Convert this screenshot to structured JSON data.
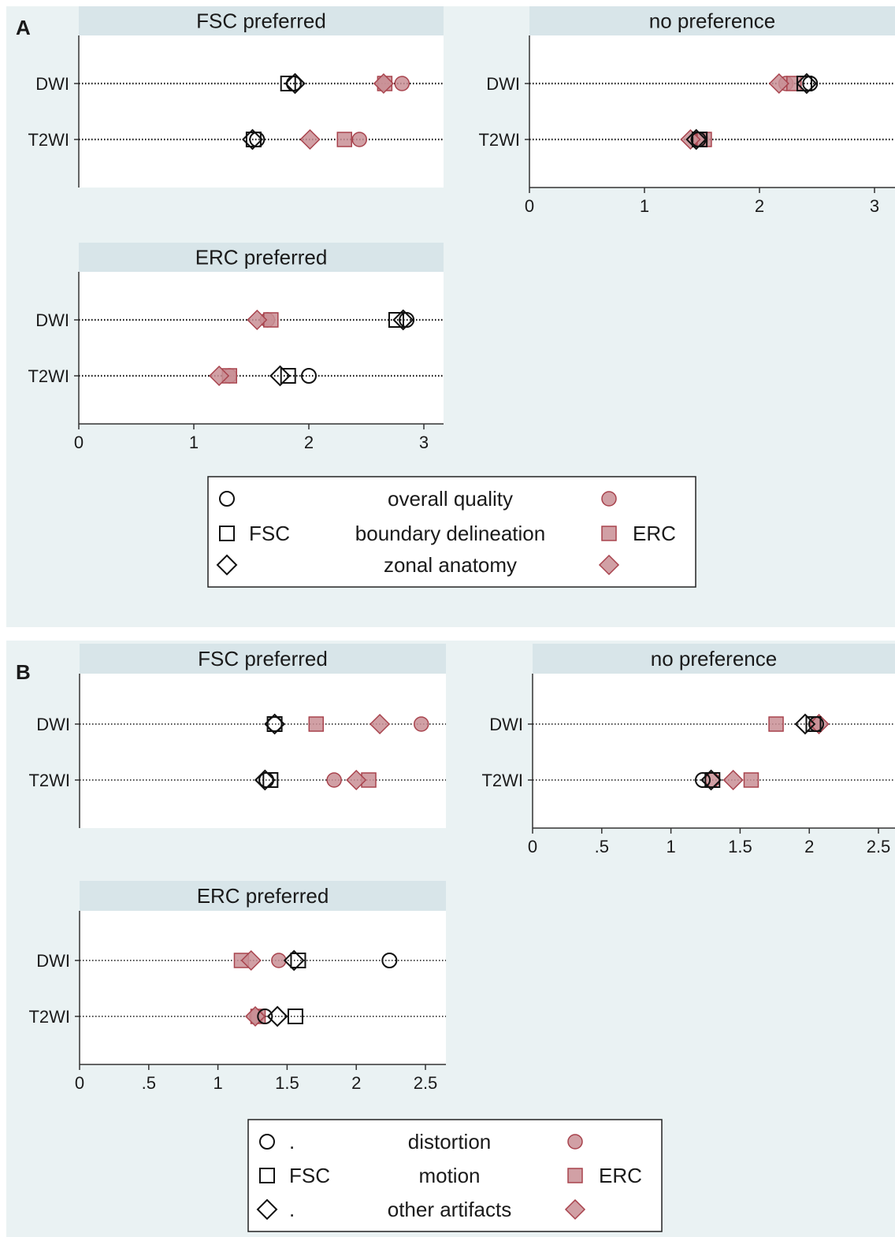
{
  "colors": {
    "background": "#eaf2f3",
    "strip": "#d8e5e9",
    "plot": "#ffffff",
    "open": "#111111",
    "filled": "#a8434d",
    "filled_fill": "#c98f95"
  },
  "figures": [
    {
      "label": "A",
      "legend": {
        "rows": [
          {
            "left_text": "",
            "center_text": "overall quality",
            "right_text": "",
            "shape": "circle"
          },
          {
            "left_text": "FSC",
            "center_text": "boundary delineation",
            "right_text": "ERC",
            "shape": "square"
          },
          {
            "left_text": "",
            "center_text": "zonal anatomy",
            "right_text": "",
            "shape": "diamond"
          }
        ]
      }
    },
    {
      "label": "B",
      "legend": {
        "rows": [
          {
            "left_text": ".",
            "center_text": "distortion",
            "right_text": "",
            "shape": "circle"
          },
          {
            "left_text": "FSC",
            "center_text": "motion",
            "right_text": "ERC",
            "shape": "square"
          },
          {
            "left_text": ".",
            "center_text": "other artifacts",
            "right_text": "",
            "shape": "diamond"
          }
        ]
      }
    }
  ],
  "chart_data": [
    {
      "type": "scatter",
      "figure": "A",
      "panel_title": "FSC preferred",
      "categories": [
        "DWI",
        "T2WI"
      ],
      "xlim": [
        0,
        3.2
      ],
      "series": [
        {
          "name": "overall quality",
          "group": "FSC",
          "shape": "circle",
          "filled": false,
          "values": [
            1.87,
            1.55
          ]
        },
        {
          "name": "boundary delineation",
          "group": "FSC",
          "shape": "square",
          "filled": false,
          "values": [
            1.82,
            1.52
          ]
        },
        {
          "name": "zonal anatomy",
          "group": "FSC",
          "shape": "diamond",
          "filled": false,
          "values": [
            1.88,
            1.51
          ]
        },
        {
          "name": "overall quality",
          "group": "ERC",
          "shape": "circle",
          "filled": true,
          "values": [
            2.81,
            2.44
          ]
        },
        {
          "name": "boundary delineation",
          "group": "ERC",
          "shape": "square",
          "filled": true,
          "values": [
            2.66,
            2.31
          ]
        },
        {
          "name": "zonal anatomy",
          "group": "ERC",
          "shape": "diamond",
          "filled": true,
          "values": [
            2.65,
            2.01
          ]
        }
      ]
    },
    {
      "type": "scatter",
      "figure": "A",
      "panel_title": "no preference",
      "categories": [
        "DWI",
        "T2WI"
      ],
      "xlim": [
        0,
        3.2
      ],
      "xticks": [
        "0",
        "1",
        "2",
        "3"
      ],
      "series": [
        {
          "name": "overall quality",
          "group": "FSC",
          "shape": "circle",
          "filled": false,
          "values": [
            2.44,
            1.47
          ]
        },
        {
          "name": "boundary delineation",
          "group": "FSC",
          "shape": "square",
          "filled": false,
          "values": [
            2.39,
            1.48
          ]
        },
        {
          "name": "zonal anatomy",
          "group": "FSC",
          "shape": "diamond",
          "filled": false,
          "values": [
            2.41,
            1.45
          ]
        },
        {
          "name": "overall quality",
          "group": "ERC",
          "shape": "circle",
          "filled": true,
          "values": [
            2.23,
            1.49
          ]
        },
        {
          "name": "boundary delineation",
          "group": "ERC",
          "shape": "square",
          "filled": true,
          "values": [
            2.3,
            1.52
          ]
        },
        {
          "name": "zonal anatomy",
          "group": "ERC",
          "shape": "diamond",
          "filled": true,
          "values": [
            2.17,
            1.4
          ]
        }
      ]
    },
    {
      "type": "scatter",
      "figure": "A",
      "panel_title": "ERC preferred",
      "categories": [
        "DWI",
        "T2WI"
      ],
      "xlim": [
        0,
        3.2
      ],
      "xticks": [
        "0",
        "1",
        "2",
        "3"
      ],
      "series": [
        {
          "name": "overall quality",
          "group": "FSC",
          "shape": "circle",
          "filled": false,
          "values": [
            2.85,
            2.0
          ]
        },
        {
          "name": "boundary delineation",
          "group": "FSC",
          "shape": "square",
          "filled": false,
          "values": [
            2.76,
            1.82
          ]
        },
        {
          "name": "zonal anatomy",
          "group": "FSC",
          "shape": "diamond",
          "filled": false,
          "values": [
            2.82,
            1.75
          ]
        },
        {
          "name": "overall quality",
          "group": "ERC",
          "shape": "circle",
          "filled": true,
          "values": [
            1.64,
            1.31
          ]
        },
        {
          "name": "boundary delineation",
          "group": "ERC",
          "shape": "square",
          "filled": true,
          "values": [
            1.67,
            1.31
          ]
        },
        {
          "name": "zonal anatomy",
          "group": "ERC",
          "shape": "diamond",
          "filled": true,
          "values": [
            1.55,
            1.22
          ]
        }
      ]
    },
    {
      "type": "scatter",
      "figure": "B",
      "panel_title": "FSC preferred",
      "categories": [
        "DWI",
        "T2WI"
      ],
      "xlim": [
        0,
        2.65
      ],
      "series": [
        {
          "name": "distortion",
          "group": "FSC",
          "shape": "circle",
          "filled": false,
          "values": [
            1.41,
            1.35
          ]
        },
        {
          "name": "motion",
          "group": "FSC",
          "shape": "square",
          "filled": false,
          "values": [
            1.41,
            1.38
          ]
        },
        {
          "name": "other artifacts",
          "group": "FSC",
          "shape": "diamond",
          "filled": false,
          "values": [
            1.41,
            1.34
          ]
        },
        {
          "name": "distortion",
          "group": "ERC",
          "shape": "circle",
          "filled": true,
          "values": [
            2.47,
            1.84
          ]
        },
        {
          "name": "motion",
          "group": "ERC",
          "shape": "square",
          "filled": true,
          "values": [
            1.71,
            2.09
          ]
        },
        {
          "name": "other artifacts",
          "group": "ERC",
          "shape": "diamond",
          "filled": true,
          "values": [
            2.17,
            2.0
          ]
        }
      ]
    },
    {
      "type": "scatter",
      "figure": "B",
      "panel_title": "no preference",
      "categories": [
        "DWI",
        "T2WI"
      ],
      "xlim": [
        0,
        2.65
      ],
      "xticks": [
        "0",
        ".5",
        "1",
        "1.5",
        "2",
        "2.5"
      ],
      "series": [
        {
          "name": "distortion",
          "group": "FSC",
          "shape": "circle",
          "filled": false,
          "values": [
            2.05,
            1.23
          ]
        },
        {
          "name": "motion",
          "group": "FSC",
          "shape": "square",
          "filled": false,
          "values": [
            2.03,
            1.3
          ]
        },
        {
          "name": "other artifacts",
          "group": "FSC",
          "shape": "diamond",
          "filled": false,
          "values": [
            1.97,
            1.29
          ]
        },
        {
          "name": "distortion",
          "group": "ERC",
          "shape": "circle",
          "filled": true,
          "values": [
            2.05,
            1.3
          ]
        },
        {
          "name": "motion",
          "group": "ERC",
          "shape": "square",
          "filled": true,
          "values": [
            1.76,
            1.58
          ]
        },
        {
          "name": "other artifacts",
          "group": "ERC",
          "shape": "diamond",
          "filled": true,
          "values": [
            2.07,
            1.45
          ]
        }
      ]
    },
    {
      "type": "scatter",
      "figure": "B",
      "panel_title": "ERC preferred",
      "categories": [
        "DWI",
        "T2WI"
      ],
      "xlim": [
        0,
        2.65
      ],
      "xticks": [
        "0",
        ".5",
        "1",
        "1.5",
        "2",
        "2.5"
      ],
      "series": [
        {
          "name": "distortion",
          "group": "FSC",
          "shape": "circle",
          "filled": false,
          "values": [
            2.24,
            1.34
          ]
        },
        {
          "name": "motion",
          "group": "FSC",
          "shape": "square",
          "filled": false,
          "values": [
            1.58,
            1.56
          ]
        },
        {
          "name": "other artifacts",
          "group": "FSC",
          "shape": "diamond",
          "filled": false,
          "values": [
            1.55,
            1.43
          ]
        },
        {
          "name": "distortion",
          "group": "ERC",
          "shape": "circle",
          "filled": true,
          "values": [
            1.44,
            1.28
          ]
        },
        {
          "name": "motion",
          "group": "ERC",
          "shape": "square",
          "filled": true,
          "values": [
            1.17,
            1.29
          ]
        },
        {
          "name": "other artifacts",
          "group": "ERC",
          "shape": "diamond",
          "filled": true,
          "values": [
            1.24,
            1.27
          ]
        }
      ]
    }
  ]
}
